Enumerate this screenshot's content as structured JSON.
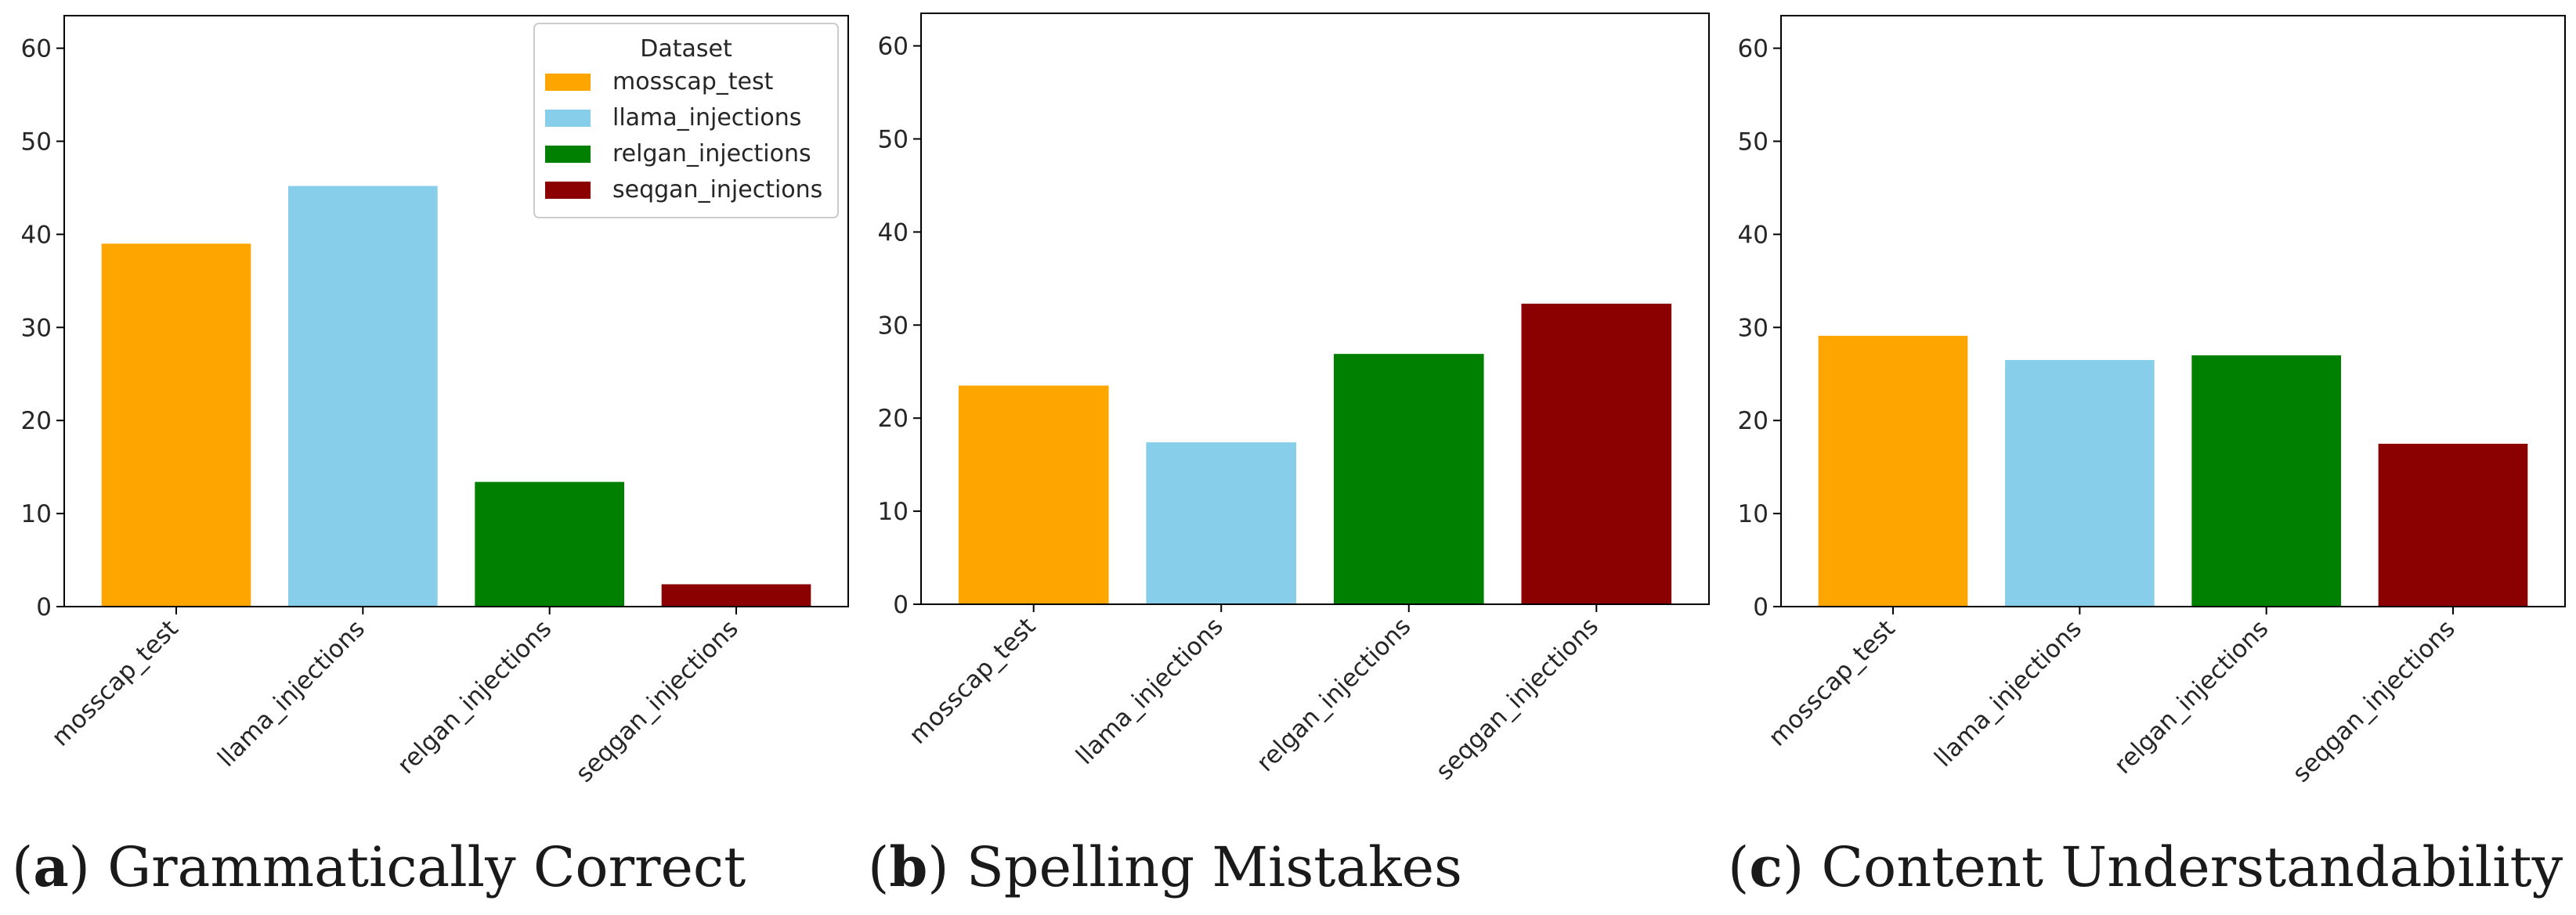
{
  "colors": {
    "mosscap_test": "#FFA500",
    "llama_injections": "#87CEEB",
    "relgan_injections": "#008000",
    "seqgan_injections": "#8B0000"
  },
  "legend": {
    "title": "Dataset",
    "entries": [
      "mosscap_test",
      "llama_injections",
      "relgan_injections",
      "seqgan_injections"
    ]
  },
  "chart_data": [
    {
      "type": "bar",
      "caption_letter": "a",
      "title": "Grammatically Correct",
      "categories": [
        "mosscap_test",
        "llama_injections",
        "relgan_injections",
        "seqgan_injections"
      ],
      "values": [
        39.0,
        45.2,
        13.4,
        2.4
      ],
      "ylim": [
        0,
        63.5
      ],
      "yticks": [
        0,
        10,
        20,
        30,
        40,
        50,
        60
      ],
      "xlabel": "",
      "ylabel": "",
      "grid": false,
      "legend": "top-right"
    },
    {
      "type": "bar",
      "caption_letter": "b",
      "title": "Spelling Mistakes",
      "categories": [
        "mosscap_test",
        "llama_injections",
        "relgan_injections",
        "seqgan_injections"
      ],
      "values": [
        23.5,
        17.4,
        26.9,
        32.3
      ],
      "ylim": [
        0,
        63.5
      ],
      "yticks": [
        0,
        10,
        20,
        30,
        40,
        50,
        60
      ],
      "xlabel": "",
      "ylabel": "",
      "grid": false,
      "legend": "none"
    },
    {
      "type": "bar",
      "caption_letter": "c",
      "title": "Content Understandability",
      "categories": [
        "mosscap_test",
        "llama_injections",
        "relgan_injections",
        "seqgan_injections"
      ],
      "values": [
        29.1,
        26.5,
        27.0,
        17.5
      ],
      "ylim": [
        0,
        63.5
      ],
      "yticks": [
        0,
        10,
        20,
        30,
        40,
        50,
        60
      ],
      "xlabel": "",
      "ylabel": "",
      "grid": false,
      "legend": "none"
    }
  ]
}
